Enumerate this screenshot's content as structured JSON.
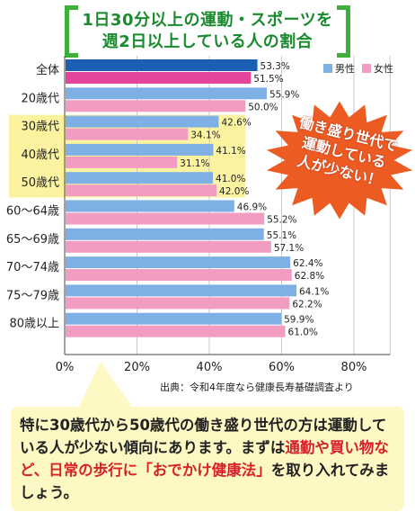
{
  "title": {
    "line1": "1日30分以上の運動・スポーツを",
    "line2": "週2日以上している人の割合"
  },
  "legend": {
    "male": "男性",
    "female": "女性"
  },
  "colors": {
    "male": "#7eb0e6",
    "male_total": "#1b5fb3",
    "female": "#f39cc2",
    "female_total": "#e4459a",
    "highlight": "#fbf3a0",
    "burst": "#ec5b22",
    "title_green": "#3cae3a",
    "callout_bg": "#fef8c4",
    "accent_red": "#d8202a"
  },
  "source": "出典：令和4年度なら健康長寿基礎調査より",
  "burst": {
    "lines": [
      "働き盛り世代で",
      "運動している",
      "人が少ない！"
    ]
  },
  "callout": {
    "p1": "特に30歳代から50歳代の働き盛り世代の方は運動している人が少ない傾向にあります。まずは",
    "p2": "通勤や買い物など、日常の歩行に",
    "p3": "「おでかけ健康法」",
    "p4": "を取り入れてみましょう。"
  },
  "chart_data": {
    "type": "bar",
    "orientation": "horizontal",
    "categories": [
      "全体",
      "20歳代",
      "30歳代",
      "40歳代",
      "50歳代",
      "60～64歳",
      "65～69歳",
      "70～74歳",
      "75～79歳",
      "80歳以上"
    ],
    "series": [
      {
        "name": "男性",
        "values": [
          53.3,
          55.9,
          42.6,
          41.1,
          41.0,
          46.9,
          55.1,
          62.4,
          64.1,
          59.9
        ]
      },
      {
        "name": "女性",
        "values": [
          51.5,
          50.0,
          34.1,
          31.1,
          42.0,
          55.2,
          57.1,
          62.8,
          62.2,
          61.0
        ]
      }
    ],
    "highlighted_categories": [
      "30歳代",
      "40歳代",
      "50歳代"
    ],
    "xlim": [
      0,
      90
    ],
    "xticks": [
      0,
      20,
      40,
      60,
      80
    ],
    "xtick_labels": [
      "0%",
      "20%",
      "40%",
      "60%",
      "80%"
    ],
    "grid": true,
    "legend_position": "top-right"
  }
}
